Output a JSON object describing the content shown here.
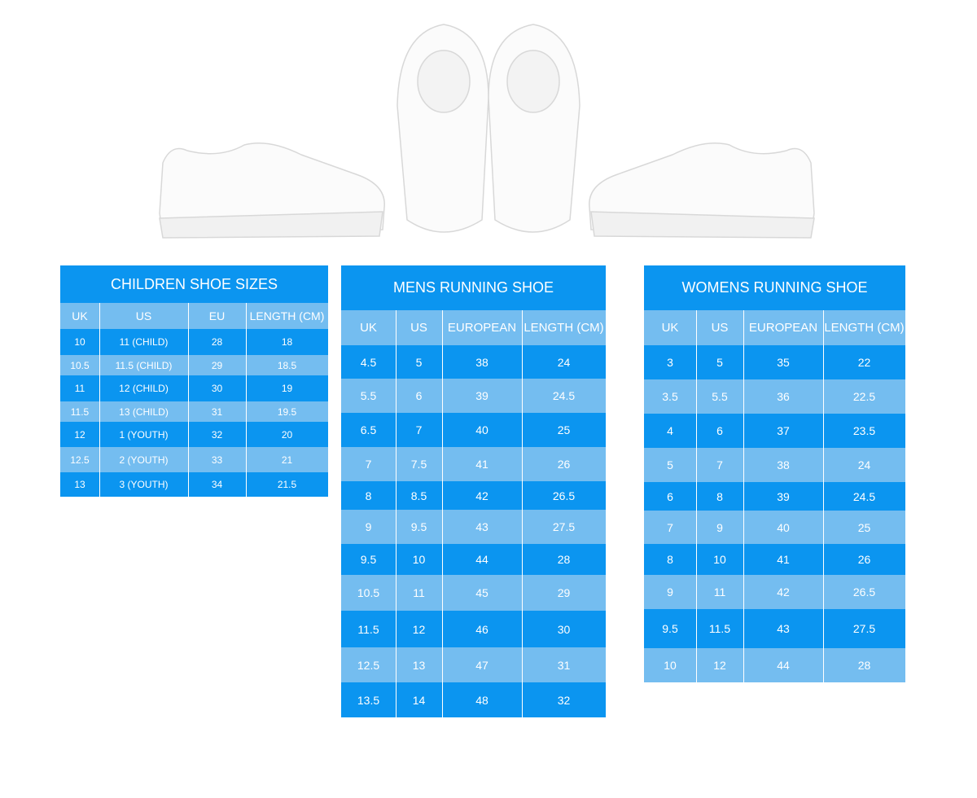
{
  "tables": [
    {
      "title": "CHILDREN SHOE SIZES",
      "columns": [
        "UK",
        "US",
        "EU",
        "LENGTH (CM)"
      ],
      "rows": [
        [
          "10",
          "11 (CHILD)",
          "28",
          "18"
        ],
        [
          "10.5",
          "11.5 (CHILD)",
          "29",
          "18.5"
        ],
        [
          "11",
          "12 (CHILD)",
          "30",
          "19"
        ],
        [
          "11.5",
          "13 (CHILD)",
          "31",
          "19.5"
        ],
        [
          "12",
          "1 (YOUTH)",
          "32",
          "20"
        ],
        [
          "12.5",
          "2 (YOUTH)",
          "33",
          "21"
        ],
        [
          "13",
          "3 (YOUTH)",
          "34",
          "21.5"
        ]
      ]
    },
    {
      "title": "MENS RUNNING SHOE",
      "columns": [
        "UK",
        "US",
        "EUROPEAN",
        "LENGTH (CM)"
      ],
      "rows": [
        [
          "4.5",
          "5",
          "38",
          "24"
        ],
        [
          "5.5",
          "6",
          "39",
          "24.5"
        ],
        [
          "6.5",
          "7",
          "40",
          "25"
        ],
        [
          "7",
          "7.5",
          "41",
          "26"
        ],
        [
          "8",
          "8.5",
          "42",
          "26.5"
        ],
        [
          "9",
          "9.5",
          "43",
          "27.5"
        ],
        [
          "9.5",
          "10",
          "44",
          "28"
        ],
        [
          "10.5",
          "11",
          "45",
          "29"
        ],
        [
          "11.5",
          "12",
          "46",
          "30"
        ],
        [
          "12.5",
          "13",
          "47",
          "31"
        ],
        [
          "13.5",
          "14",
          "48",
          "32"
        ]
      ]
    },
    {
      "title": "WOMENS RUNNING SHOE",
      "columns": [
        "UK",
        "US",
        "EUROPEAN",
        "LENGTH (CM)"
      ],
      "rows": [
        [
          "3",
          "5",
          "35",
          "22"
        ],
        [
          "3.5",
          "5.5",
          "36",
          "22.5"
        ],
        [
          "4",
          "6",
          "37",
          "23.5"
        ],
        [
          "5",
          "7",
          "38",
          "24"
        ],
        [
          "6",
          "8",
          "39",
          "24.5"
        ],
        [
          "7",
          "9",
          "40",
          "25"
        ],
        [
          "8",
          "10",
          "41",
          "26"
        ],
        [
          "9",
          "11",
          "42",
          "26.5"
        ],
        [
          "9.5",
          "11.5",
          "43",
          "27.5"
        ],
        [
          "10",
          "12",
          "44",
          "28"
        ]
      ]
    }
  ]
}
